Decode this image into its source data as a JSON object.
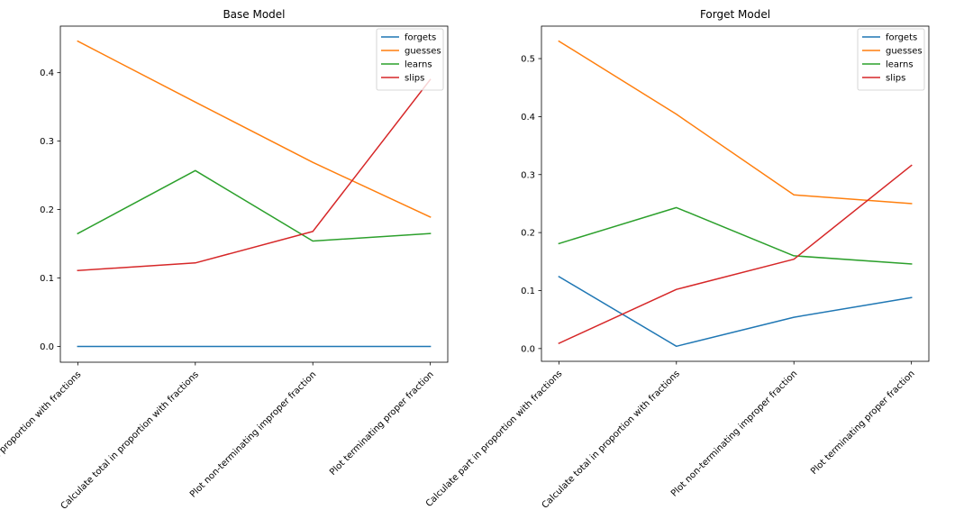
{
  "chart_data": [
    {
      "type": "line",
      "title": "Base Model",
      "xlabel": "",
      "ylabel": "",
      "categories": [
        "Calculate part in proportion with fractions",
        "Calculate total in proportion with fractions",
        "Plot non-terminating improper fraction",
        "Plot terminating proper fraction"
      ],
      "ylim": [
        -0.023,
        0.468
      ],
      "yticks": [
        0.0,
        0.1,
        0.2,
        0.3,
        0.4
      ],
      "ytick_labels": [
        "0.0",
        "0.1",
        "0.2",
        "0.3",
        "0.4"
      ],
      "grid": false,
      "legend_position": "top-right",
      "series": [
        {
          "name": "forgets",
          "color": "#1f77b4",
          "values": [
            0.0,
            0.0,
            0.0,
            0.0
          ]
        },
        {
          "name": "guesses",
          "color": "#ff7f0e",
          "values": [
            0.446,
            0.357,
            0.269,
            0.189
          ]
        },
        {
          "name": "learns",
          "color": "#2ca02c",
          "values": [
            0.165,
            0.257,
            0.154,
            0.165
          ]
        },
        {
          "name": "slips",
          "color": "#d62728",
          "values": [
            0.111,
            0.122,
            0.168,
            0.39
          ]
        }
      ]
    },
    {
      "type": "line",
      "title": "Forget Model",
      "xlabel": "",
      "ylabel": "",
      "categories": [
        "Calculate part in proportion with fractions",
        "Calculate total in proportion with fractions",
        "Plot non-terminating improper fraction",
        "Plot terminating proper fraction"
      ],
      "ylim": [
        -0.022,
        0.556
      ],
      "yticks": [
        0.0,
        0.1,
        0.2,
        0.3,
        0.4,
        0.5
      ],
      "ytick_labels": [
        "0.0",
        "0.1",
        "0.2",
        "0.3",
        "0.4",
        "0.5"
      ],
      "grid": false,
      "legend_position": "top-right",
      "series": [
        {
          "name": "forgets",
          "color": "#1f77b4",
          "values": [
            0.124,
            0.004,
            0.054,
            0.088
          ]
        },
        {
          "name": "guesses",
          "color": "#ff7f0e",
          "values": [
            0.53,
            0.404,
            0.265,
            0.25
          ]
        },
        {
          "name": "learns",
          "color": "#2ca02c",
          "values": [
            0.181,
            0.243,
            0.16,
            0.146
          ]
        },
        {
          "name": "slips",
          "color": "#d62728",
          "values": [
            0.009,
            0.102,
            0.154,
            0.316
          ]
        }
      ]
    }
  ]
}
